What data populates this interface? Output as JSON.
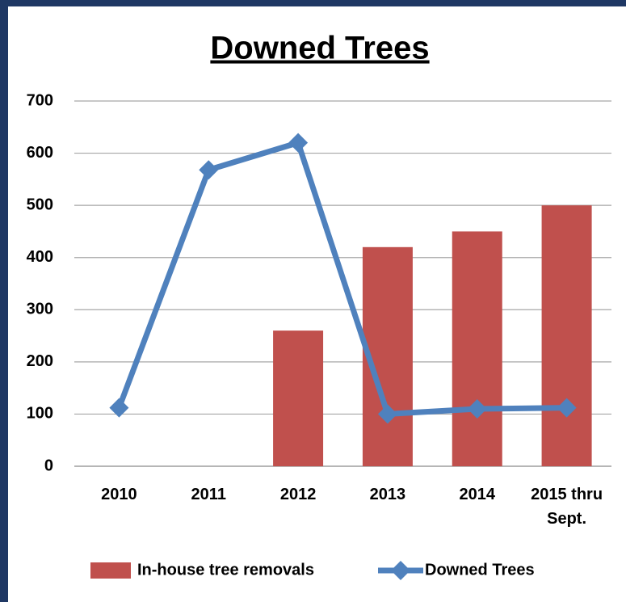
{
  "chart_data": {
    "type": "bar",
    "title": "Downed Trees",
    "categories": [
      "2010",
      "2011",
      "2012",
      "2013",
      "2014",
      "2015 thru Sept."
    ],
    "series": [
      {
        "name": "In-house tree removals",
        "type": "bar",
        "color": "#c0504d",
        "values": [
          null,
          null,
          260,
          420,
          450,
          500
        ]
      },
      {
        "name": "Downed Trees",
        "type": "line",
        "color": "#4f81bd",
        "values": [
          112,
          568,
          620,
          100,
          110,
          112
        ]
      }
    ],
    "ylim": [
      0,
      700
    ],
    "yticks": [
      0,
      100,
      200,
      300,
      400,
      500,
      600,
      700
    ],
    "grid": true,
    "legend": "bottom"
  }
}
